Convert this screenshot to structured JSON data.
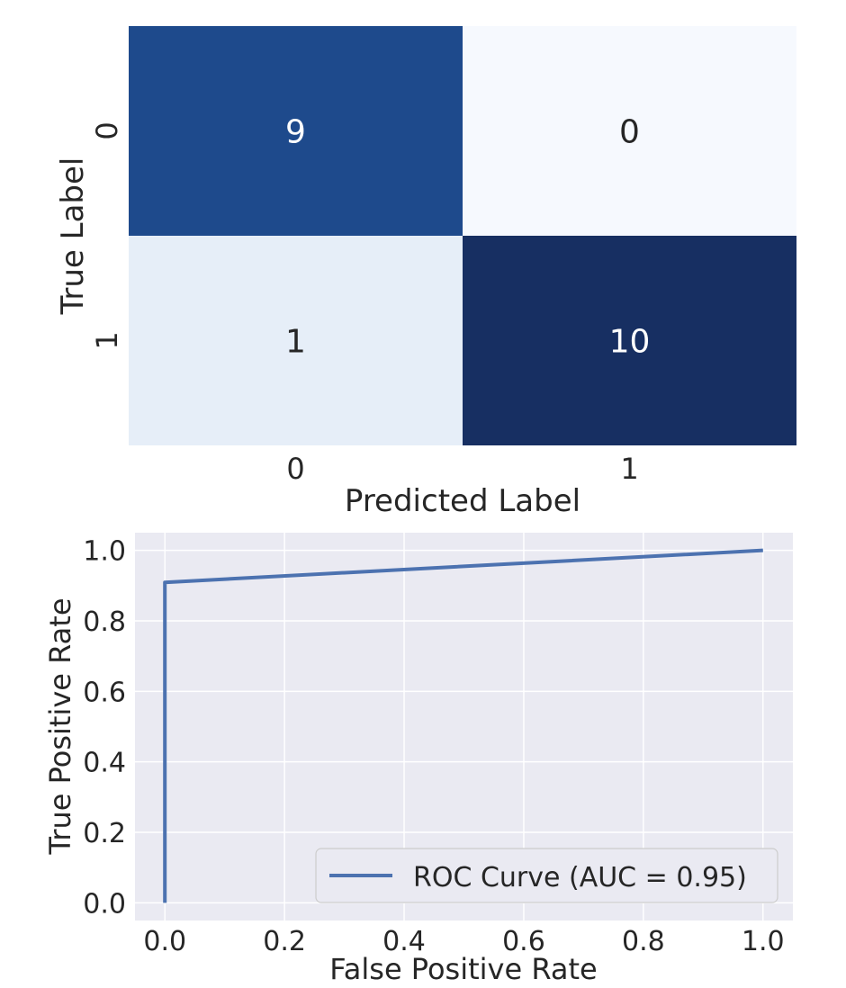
{
  "chart_data": [
    {
      "type": "heatmap",
      "x_tick_labels": [
        "0",
        "1"
      ],
      "y_tick_labels": [
        "0",
        "1"
      ],
      "xlabel": "Predicted Label",
      "ylabel": "True Label",
      "values": [
        [
          9,
          0
        ],
        [
          1,
          10
        ]
      ],
      "colormap": "Blues",
      "cell_colors": [
        [
          "#1e4a8c",
          "#f6f9fe"
        ],
        [
          "#e6eef8",
          "#172f62"
        ]
      ],
      "annotation_colors": [
        [
          "#ffffff",
          "#262626"
        ],
        [
          "#262626",
          "#ffffff"
        ]
      ],
      "colorbar": false,
      "grid": false
    },
    {
      "type": "line",
      "series": [
        {
          "name": "ROC Curve (AUC = 0.95)",
          "x": [
            0.0,
            0.0,
            1.0
          ],
          "y": [
            0.0,
            0.909,
            1.0
          ],
          "color": "#4c72b0"
        }
      ],
      "xlabel": "False Positive Rate",
      "ylabel": "True Positive Rate",
      "xlim": [
        -0.05,
        1.05
      ],
      "ylim": [
        -0.05,
        1.05
      ],
      "x_ticks": [
        "0.0",
        "0.2",
        "0.4",
        "0.6",
        "0.8",
        "1.0"
      ],
      "y_ticks": [
        "0.0",
        "0.2",
        "0.4",
        "0.6",
        "0.8",
        "1.0"
      ],
      "grid": true,
      "background_color": "#eaeaf2",
      "legend_placement": "lower-right"
    }
  ]
}
